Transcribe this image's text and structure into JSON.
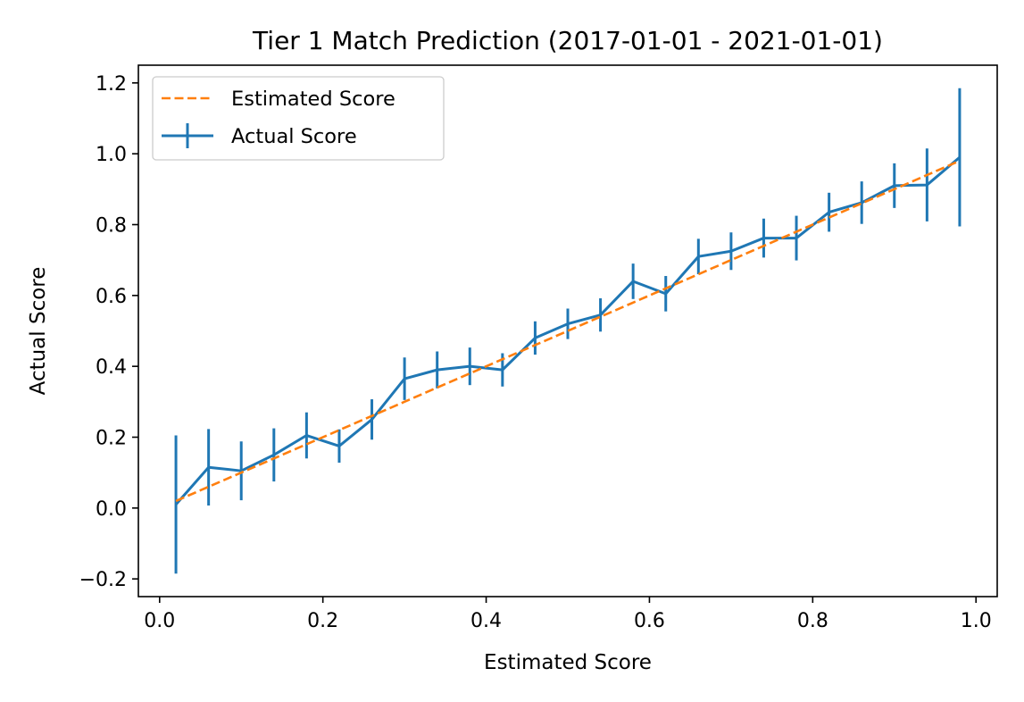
{
  "chart_data": {
    "type": "line",
    "title": "Tier 1 Match Prediction (2017-01-01 - 2021-01-01)",
    "xlabel": "Estimated Score",
    "ylabel": "Actual Score",
    "xlim": [
      -0.026,
      1.026
    ],
    "ylim": [
      -0.25,
      1.25
    ],
    "xticks": [
      0.0,
      0.2,
      0.4,
      0.6,
      0.8,
      1.0
    ],
    "xtick_labels": [
      "0.0",
      "0.2",
      "0.4",
      "0.6",
      "0.8",
      "1.0"
    ],
    "yticks": [
      -0.2,
      0.0,
      0.2,
      0.4,
      0.6,
      0.8,
      1.0,
      1.2
    ],
    "ytick_labels": [
      "−0.2",
      "0.0",
      "0.2",
      "0.4",
      "0.6",
      "0.8",
      "1.0",
      "1.2"
    ],
    "grid": false,
    "legend_position": "top-left",
    "series": [
      {
        "name": "Estimated Score",
        "style": "dashed",
        "color": "#ff7f0e",
        "x": [
          0.02,
          0.06,
          0.1,
          0.14,
          0.18,
          0.22,
          0.26,
          0.3,
          0.34,
          0.38,
          0.42,
          0.46,
          0.5,
          0.54,
          0.58,
          0.62,
          0.66,
          0.7,
          0.74,
          0.78,
          0.82,
          0.86,
          0.9,
          0.94,
          0.98
        ],
        "y": [
          0.02,
          0.06,
          0.1,
          0.14,
          0.18,
          0.22,
          0.26,
          0.3,
          0.34,
          0.38,
          0.42,
          0.46,
          0.5,
          0.54,
          0.58,
          0.62,
          0.66,
          0.7,
          0.74,
          0.78,
          0.82,
          0.86,
          0.9,
          0.94,
          0.98
        ]
      },
      {
        "name": "Actual Score",
        "style": "solid-errorbar",
        "color": "#1f77b4",
        "x": [
          0.02,
          0.06,
          0.1,
          0.14,
          0.18,
          0.22,
          0.26,
          0.3,
          0.34,
          0.38,
          0.42,
          0.46,
          0.5,
          0.54,
          0.58,
          0.62,
          0.66,
          0.7,
          0.74,
          0.78,
          0.82,
          0.86,
          0.9,
          0.94,
          0.98
        ],
        "y": [
          0.01,
          0.115,
          0.105,
          0.15,
          0.205,
          0.175,
          0.25,
          0.365,
          0.39,
          0.4,
          0.39,
          0.48,
          0.52,
          0.545,
          0.64,
          0.605,
          0.71,
          0.725,
          0.762,
          0.762,
          0.835,
          0.862,
          0.91,
          0.912,
          0.99
        ],
        "yerr": [
          0.195,
          0.108,
          0.083,
          0.075,
          0.065,
          0.047,
          0.057,
          0.06,
          0.052,
          0.053,
          0.047,
          0.047,
          0.043,
          0.047,
          0.05,
          0.05,
          0.05,
          0.053,
          0.055,
          0.063,
          0.055,
          0.06,
          0.063,
          0.103,
          0.195
        ]
      }
    ]
  }
}
